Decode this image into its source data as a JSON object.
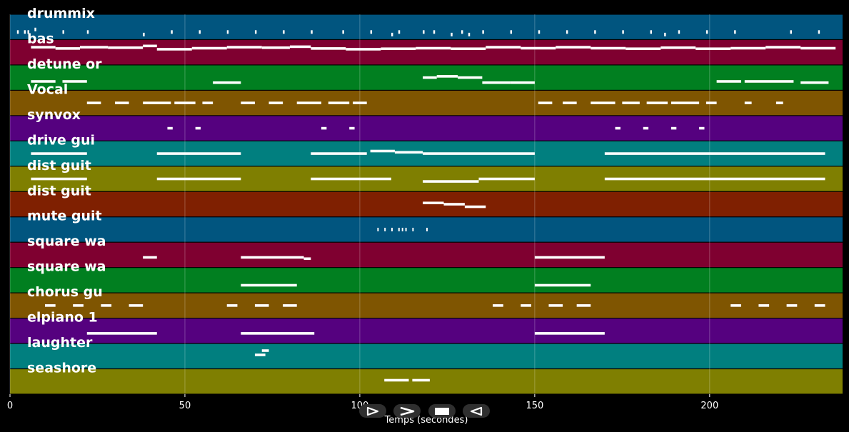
{
  "chart_data": {
    "type": "piano-roll",
    "xlabel": "Temps (secondes)",
    "xlim": [
      0,
      238
    ],
    "xticks": [
      0,
      50,
      100,
      150,
      200
    ],
    "grid": true,
    "track_colors": [
      "#01557f",
      "#7f0030",
      "#017f20",
      "#7f5501",
      "#55017f",
      "#017f7f",
      "#7f7f01",
      "#7f2001"
    ],
    "note_color": "#ffffff",
    "tracks": [
      {
        "label": "drummix",
        "notes": [
          [
            2,
            2.5,
            0.3
          ],
          [
            4,
            4.5,
            0.3
          ],
          [
            5,
            5.5,
            0.3
          ],
          [
            7,
            7.5,
            0.4
          ],
          [
            15,
            15.5,
            0.3
          ],
          [
            22,
            22.5,
            0.3
          ],
          [
            38,
            38.5,
            0.2
          ],
          [
            46,
            46.5,
            0.3
          ],
          [
            54,
            54.5,
            0.3
          ],
          [
            62,
            62.5,
            0.3
          ],
          [
            70,
            70.5,
            0.3
          ],
          [
            78,
            78.5,
            0.3
          ],
          [
            86,
            86.5,
            0.3
          ],
          [
            95,
            95.5,
            0.3
          ],
          [
            103,
            103.5,
            0.3
          ],
          [
            109,
            109.5,
            0.2
          ],
          [
            111,
            111.5,
            0.3
          ],
          [
            118,
            118.5,
            0.3
          ],
          [
            121,
            121.5,
            0.3
          ],
          [
            126,
            126.5,
            0.2
          ],
          [
            129,
            129.5,
            0.3
          ],
          [
            131,
            131.5,
            0.2
          ],
          [
            135,
            135.5,
            0.3
          ],
          [
            143,
            143.5,
            0.3
          ],
          [
            151,
            151.5,
            0.3
          ],
          [
            159,
            159.5,
            0.3
          ],
          [
            167,
            167.5,
            0.3
          ],
          [
            175,
            175.5,
            0.3
          ],
          [
            183,
            183.5,
            0.3
          ],
          [
            187,
            187.5,
            0.2
          ],
          [
            191,
            191.5,
            0.3
          ],
          [
            199,
            199.5,
            0.3
          ],
          [
            207,
            207.5,
            0.3
          ],
          [
            223,
            223.5,
            0.3
          ],
          [
            231,
            231.5,
            0.3
          ]
        ]
      },
      {
        "label": "bas",
        "notes": [
          [
            6,
            13,
            0.7
          ],
          [
            13,
            20,
            0.65
          ],
          [
            20,
            28,
            0.7
          ],
          [
            28,
            38,
            0.68
          ],
          [
            38,
            42,
            0.75
          ],
          [
            42,
            52,
            0.62
          ],
          [
            52,
            62,
            0.66
          ],
          [
            62,
            72,
            0.7
          ],
          [
            72,
            80,
            0.68
          ],
          [
            80,
            86,
            0.72
          ],
          [
            86,
            96,
            0.65
          ],
          [
            96,
            106,
            0.62
          ],
          [
            106,
            116,
            0.64
          ],
          [
            116,
            126,
            0.66
          ],
          [
            126,
            136,
            0.64
          ],
          [
            136,
            146,
            0.7
          ],
          [
            146,
            156,
            0.66
          ],
          [
            156,
            166,
            0.7
          ],
          [
            166,
            176,
            0.66
          ],
          [
            176,
            186,
            0.64
          ],
          [
            186,
            196,
            0.68
          ],
          [
            196,
            206,
            0.64
          ],
          [
            206,
            216,
            0.66
          ],
          [
            216,
            226,
            0.7
          ],
          [
            226,
            236,
            0.66
          ]
        ]
      },
      {
        "label": "detune or",
        "notes": [
          [
            6,
            13,
            0.35
          ],
          [
            15,
            22,
            0.35
          ],
          [
            58,
            66,
            0.3
          ],
          [
            118,
            122,
            0.5
          ],
          [
            122,
            128,
            0.55
          ],
          [
            128,
            135,
            0.5
          ],
          [
            135,
            143,
            0.3
          ],
          [
            143,
            150,
            0.3
          ],
          [
            202,
            209,
            0.35
          ],
          [
            210,
            224,
            0.35
          ],
          [
            226,
            234,
            0.3
          ]
        ]
      },
      {
        "label": "Vocal",
        "notes": [
          [
            22,
            26,
            0.5
          ],
          [
            30,
            34,
            0.5
          ],
          [
            38,
            46,
            0.5
          ],
          [
            47,
            53,
            0.5
          ],
          [
            55,
            58,
            0.5
          ],
          [
            66,
            70,
            0.5
          ],
          [
            74,
            78,
            0.5
          ],
          [
            82,
            89,
            0.5
          ],
          [
            91,
            97,
            0.5
          ],
          [
            98,
            102,
            0.5
          ],
          [
            151,
            155,
            0.5
          ],
          [
            158,
            162,
            0.5
          ],
          [
            166,
            173,
            0.5
          ],
          [
            175,
            180,
            0.5
          ],
          [
            182,
            188,
            0.5
          ],
          [
            189,
            197,
            0.5
          ],
          [
            199,
            202,
            0.5
          ],
          [
            210,
            212,
            0.5
          ],
          [
            219,
            221,
            0.5
          ]
        ]
      },
      {
        "label": "synvox",
        "notes": [
          [
            45,
            46.5,
            0.5
          ],
          [
            53,
            54.5,
            0.5
          ],
          [
            89,
            90.5,
            0.5
          ],
          [
            97,
            98.5,
            0.5
          ],
          [
            173,
            174.5,
            0.5
          ],
          [
            181,
            182.5,
            0.5
          ],
          [
            189,
            190.5,
            0.5
          ],
          [
            197,
            198.5,
            0.5
          ]
        ]
      },
      {
        "label": "drive gui",
        "notes": [
          [
            6,
            22,
            0.5
          ],
          [
            42,
            66,
            0.5
          ],
          [
            86,
            102,
            0.5
          ],
          [
            103,
            110,
            0.6
          ],
          [
            110,
            118,
            0.55
          ],
          [
            118,
            150,
            0.5
          ],
          [
            170,
            233,
            0.5
          ]
        ]
      },
      {
        "label": "dist guit",
        "notes": [
          [
            6,
            22,
            0.5
          ],
          [
            42,
            66,
            0.5
          ],
          [
            86,
            109,
            0.5
          ],
          [
            118,
            134,
            0.4
          ],
          [
            134,
            150,
            0.5
          ],
          [
            170,
            233,
            0.5
          ]
        ]
      },
      {
        "label": "dist guit",
        "notes": [
          [
            118,
            124,
            0.55
          ],
          [
            124,
            130,
            0.5
          ],
          [
            130,
            136,
            0.4
          ]
        ]
      },
      {
        "label": "mute guit",
        "notes": [
          [
            105,
            105.4,
            0.5
          ],
          [
            107,
            107.4,
            0.5
          ],
          [
            109,
            109.4,
            0.5
          ],
          [
            111,
            111.4,
            0.5
          ],
          [
            112,
            112.4,
            0.5
          ],
          [
            113,
            113.4,
            0.5
          ],
          [
            115,
            115.4,
            0.5
          ],
          [
            119,
            119.4,
            0.5
          ]
        ]
      },
      {
        "label": "square wa",
        "notes": [
          [
            38,
            42,
            0.4
          ],
          [
            66,
            84,
            0.4
          ],
          [
            84,
            86,
            0.35
          ],
          [
            150,
            170,
            0.4
          ]
        ]
      },
      {
        "label": "square wa",
        "notes": [
          [
            66,
            82,
            0.3
          ],
          [
            150,
            166,
            0.3
          ]
        ]
      },
      {
        "label": "chorus gu",
        "notes": [
          [
            10,
            13,
            0.5
          ],
          [
            18,
            21,
            0.5
          ],
          [
            26,
            29,
            0.5
          ],
          [
            34,
            38,
            0.5
          ],
          [
            62,
            65,
            0.5
          ],
          [
            70,
            74,
            0.5
          ],
          [
            78,
            82,
            0.5
          ],
          [
            138,
            141,
            0.5
          ],
          [
            146,
            149,
            0.5
          ],
          [
            154,
            158,
            0.5
          ],
          [
            162,
            166,
            0.5
          ],
          [
            206,
            209,
            0.5
          ],
          [
            214,
            217,
            0.5
          ],
          [
            222,
            225,
            0.5
          ],
          [
            230,
            233,
            0.5
          ]
        ]
      },
      {
        "label": "elpiano 1",
        "notes": [
          [
            22,
            42,
            0.4
          ],
          [
            66,
            87,
            0.4
          ],
          [
            150,
            170,
            0.4
          ]
        ]
      },
      {
        "label": "laughter",
        "notes": [
          [
            70,
            73,
            0.55
          ],
          [
            72,
            74,
            0.72
          ]
        ]
      },
      {
        "label": "seashore",
        "notes": [
          [
            107,
            114,
            0.55
          ],
          [
            115,
            120,
            0.55
          ]
        ]
      }
    ]
  },
  "controls": {
    "play_icon": "play-outline-icon",
    "next_icon": "chevron-right-icon",
    "stop_icon": "stop-icon",
    "prev_icon": "back-icon"
  }
}
